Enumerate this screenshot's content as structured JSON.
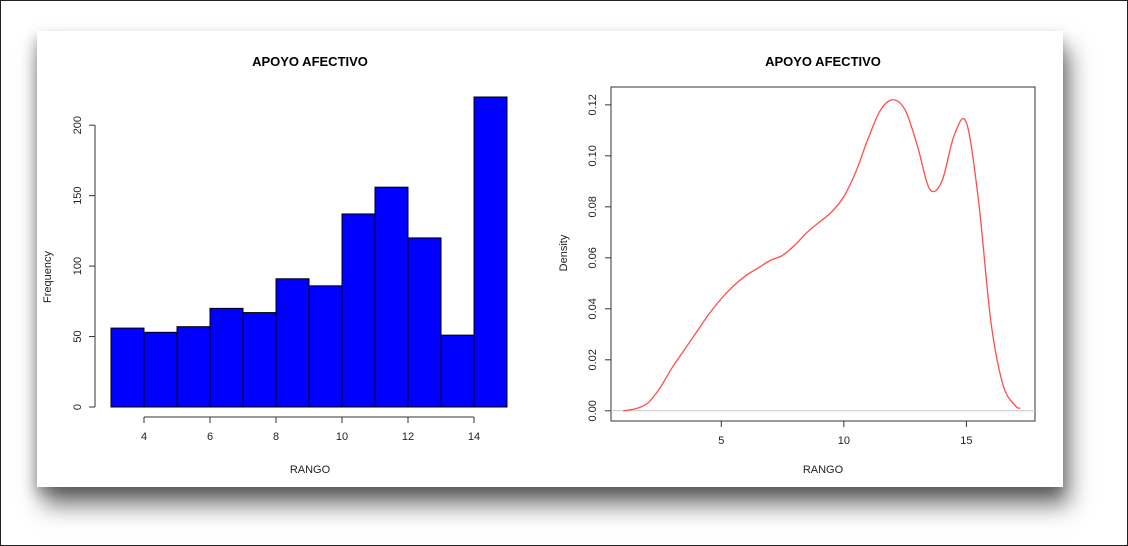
{
  "chart_data": [
    {
      "type": "bar",
      "title": "APOYO AFECTIVO",
      "xlabel": "RANGO",
      "ylabel": "Frequency",
      "bar_color": "#0000ff",
      "bins": [
        {
          "from": 3,
          "to": 4,
          "value": 56
        },
        {
          "from": 4,
          "to": 5,
          "value": 53
        },
        {
          "from": 5,
          "to": 6,
          "value": 57
        },
        {
          "from": 6,
          "to": 7,
          "value": 70
        },
        {
          "from": 7,
          "to": 8,
          "value": 67
        },
        {
          "from": 8,
          "to": 9,
          "value": 91
        },
        {
          "from": 9,
          "to": 10,
          "value": 86
        },
        {
          "from": 10,
          "to": 11,
          "value": 137
        },
        {
          "from": 11,
          "to": 12,
          "value": 156
        },
        {
          "from": 12,
          "to": 13,
          "value": 120
        },
        {
          "from": 13,
          "to": 14,
          "value": 51
        },
        {
          "from": 14,
          "to": 15,
          "value": 220
        }
      ],
      "xlim": [
        3,
        15
      ],
      "ylim": [
        0,
        220
      ],
      "x_ticks": [
        "4",
        "6",
        "8",
        "10",
        "12",
        "14"
      ],
      "y_ticks": [
        "0",
        "50",
        "100",
        "150",
        "200"
      ],
      "grid": false
    },
    {
      "type": "line",
      "title": "APOYO AFECTIVO",
      "xlabel": "RANGO",
      "ylabel": "Density",
      "line_color": "#ff4d4d",
      "baseline_color": "#c8c8c8",
      "x": [
        1.0,
        1.5,
        2.0,
        2.5,
        3.0,
        3.5,
        4.0,
        4.5,
        5.0,
        5.5,
        6.0,
        6.5,
        7.0,
        7.5,
        8.0,
        8.5,
        9.0,
        9.5,
        10.0,
        10.5,
        11.0,
        11.5,
        12.0,
        12.5,
        13.0,
        13.5,
        14.0,
        14.5,
        15.0,
        15.5,
        16.0,
        16.5,
        17.0,
        17.2
      ],
      "y": [
        0.0,
        0.0008,
        0.003,
        0.009,
        0.017,
        0.024,
        0.031,
        0.038,
        0.044,
        0.049,
        0.053,
        0.056,
        0.059,
        0.061,
        0.065,
        0.07,
        0.074,
        0.078,
        0.084,
        0.094,
        0.107,
        0.118,
        0.122,
        0.118,
        0.104,
        0.087,
        0.09,
        0.108,
        0.113,
        0.082,
        0.035,
        0.01,
        0.002,
        0.001
      ],
      "xlim": [
        0.5,
        17.8
      ],
      "ylim": [
        -0.004,
        0.127
      ],
      "x_ticks": [
        "5",
        "10",
        "15"
      ],
      "y_ticks": [
        "0.00",
        "0.02",
        "0.04",
        "0.06",
        "0.08",
        "0.10",
        "0.12"
      ],
      "grid": false
    }
  ]
}
